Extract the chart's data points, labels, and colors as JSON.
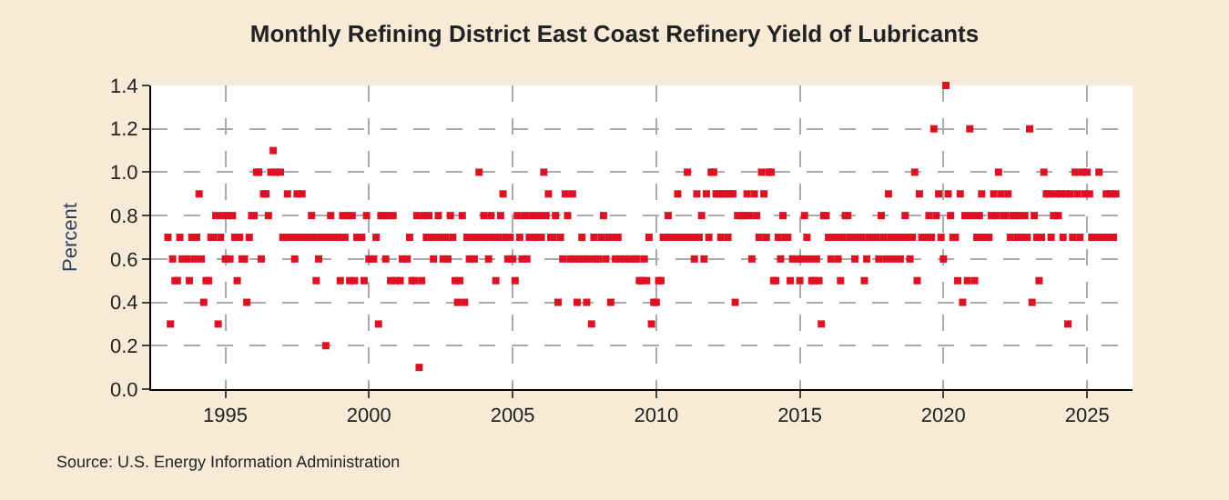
{
  "chart_data": {
    "type": "scatter",
    "title": "Monthly Refining District East Coast Refinery Yield of Lubricants",
    "ylabel": "Percent",
    "annotations": [
      "Source: U.S. Energy Information Administration"
    ],
    "marker": "square",
    "grid": true,
    "xlim": [
      "1992-06",
      "2026-08"
    ],
    "xticks": [
      {
        "value": "1995-01",
        "label": "1995"
      },
      {
        "value": "2000-01",
        "label": "2000"
      },
      {
        "value": "2005-01",
        "label": "2005"
      },
      {
        "value": "2010-01",
        "label": "2010"
      },
      {
        "value": "2015-01",
        "label": "2015"
      },
      {
        "value": "2020-01",
        "label": "2020"
      },
      {
        "value": "2025-01",
        "label": "2025"
      }
    ],
    "ylim": [
      0,
      1.4
    ],
    "yticks": [
      {
        "value": 0,
        "label": "0.0"
      },
      {
        "value": 0.2,
        "label": "0.2"
      },
      {
        "value": 0.4,
        "label": "0.4"
      },
      {
        "value": 0.6,
        "label": "0.6"
      },
      {
        "value": 0.8,
        "label": "0.8"
      },
      {
        "value": 1.0,
        "label": "1.0"
      },
      {
        "value": 1.2,
        "label": "1.2"
      },
      {
        "value": 1.4,
        "label": "1.4"
      }
    ],
    "x": [
      "1993-01",
      "1993-02",
      "1993-03",
      "1993-04",
      "1993-05",
      "1993-06",
      "1993-07",
      "1993-08",
      "1993-09",
      "1993-10",
      "1993-11",
      "1993-12",
      "1994-01",
      "1994-02",
      "1994-03",
      "1994-04",
      "1994-05",
      "1994-06",
      "1994-07",
      "1994-08",
      "1994-09",
      "1994-10",
      "1994-11",
      "1994-12",
      "1995-01",
      "1995-02",
      "1995-03",
      "1995-04",
      "1995-05",
      "1995-06",
      "1995-07",
      "1995-08",
      "1995-09",
      "1995-10",
      "1995-11",
      "1995-12",
      "1996-01",
      "1996-02",
      "1996-03",
      "1996-04",
      "1996-05",
      "1996-06",
      "1996-07",
      "1996-08",
      "1996-09",
      "1996-10",
      "1996-11",
      "1996-12",
      "1997-01",
      "1997-02",
      "1997-03",
      "1997-04",
      "1997-05",
      "1997-06",
      "1997-07",
      "1997-08",
      "1997-09",
      "1997-10",
      "1997-11",
      "1997-12",
      "1998-01",
      "1998-02",
      "1998-03",
      "1998-04",
      "1998-05",
      "1998-06",
      "1998-07",
      "1998-08",
      "1998-09",
      "1998-10",
      "1998-11",
      "1998-12",
      "1999-01",
      "1999-02",
      "1999-03",
      "1999-04",
      "1999-05",
      "1999-06",
      "1999-07",
      "1999-08",
      "1999-09",
      "1999-10",
      "1999-11",
      "1999-12",
      "2000-01",
      "2000-02",
      "2000-03",
      "2000-04",
      "2000-05",
      "2000-06",
      "2000-07",
      "2000-08",
      "2000-09",
      "2000-10",
      "2000-11",
      "2000-12",
      "2001-01",
      "2001-02",
      "2001-03",
      "2001-04",
      "2001-05",
      "2001-06",
      "2001-07",
      "2001-08",
      "2001-09",
      "2001-10",
      "2001-11",
      "2001-12",
      "2002-01",
      "2002-02",
      "2002-03",
      "2002-04",
      "2002-05",
      "2002-06",
      "2002-07",
      "2002-08",
      "2002-09",
      "2002-10",
      "2002-11",
      "2002-12",
      "2003-01",
      "2003-02",
      "2003-03",
      "2003-04",
      "2003-05",
      "2003-06",
      "2003-07",
      "2003-08",
      "2003-09",
      "2003-10",
      "2003-11",
      "2003-12",
      "2004-01",
      "2004-02",
      "2004-03",
      "2004-04",
      "2004-05",
      "2004-06",
      "2004-07",
      "2004-08",
      "2004-09",
      "2004-10",
      "2004-11",
      "2004-12",
      "2005-01",
      "2005-02",
      "2005-03",
      "2005-04",
      "2005-05",
      "2005-06",
      "2005-07",
      "2005-08",
      "2005-09",
      "2005-10",
      "2005-11",
      "2005-12",
      "2006-01",
      "2006-02",
      "2006-03",
      "2006-04",
      "2006-05",
      "2006-06",
      "2006-07",
      "2006-08",
      "2006-09",
      "2006-10",
      "2006-11",
      "2006-12",
      "2007-01",
      "2007-02",
      "2007-03",
      "2007-04",
      "2007-05",
      "2007-06",
      "2007-07",
      "2007-08",
      "2007-09",
      "2007-10",
      "2007-11",
      "2007-12",
      "2008-01",
      "2008-02",
      "2008-03",
      "2008-04",
      "2008-05",
      "2008-06",
      "2008-07",
      "2008-08",
      "2008-09",
      "2008-10",
      "2008-11",
      "2008-12",
      "2009-01",
      "2009-02",
      "2009-03",
      "2009-04",
      "2009-05",
      "2009-06",
      "2009-07",
      "2009-08",
      "2009-09",
      "2009-10",
      "2009-11",
      "2009-12",
      "2010-01",
      "2010-02",
      "2010-03",
      "2010-04",
      "2010-05",
      "2010-06",
      "2010-07",
      "2010-08",
      "2010-09",
      "2010-10",
      "2010-11",
      "2010-12",
      "2011-01",
      "2011-02",
      "2011-03",
      "2011-04",
      "2011-05",
      "2011-06",
      "2011-07",
      "2011-08",
      "2011-09",
      "2011-10",
      "2011-11",
      "2011-12",
      "2012-01",
      "2012-02",
      "2012-03",
      "2012-04",
      "2012-05",
      "2012-06",
      "2012-07",
      "2012-08",
      "2012-09",
      "2012-10",
      "2012-11",
      "2012-12",
      "2013-01",
      "2013-02",
      "2013-03",
      "2013-04",
      "2013-05",
      "2013-06",
      "2013-07",
      "2013-08",
      "2013-09",
      "2013-10",
      "2013-11",
      "2013-12",
      "2014-01",
      "2014-02",
      "2014-03",
      "2014-04",
      "2014-05",
      "2014-06",
      "2014-07",
      "2014-08",
      "2014-09",
      "2014-10",
      "2014-11",
      "2014-12",
      "2015-01",
      "2015-02",
      "2015-03",
      "2015-04",
      "2015-05",
      "2015-06",
      "2015-07",
      "2015-08",
      "2015-09",
      "2015-10",
      "2015-11",
      "2015-12",
      "2016-01",
      "2016-02",
      "2016-03",
      "2016-04",
      "2016-05",
      "2016-06",
      "2016-07",
      "2016-08",
      "2016-09",
      "2016-10",
      "2016-11",
      "2016-12",
      "2017-01",
      "2017-02",
      "2017-03",
      "2017-04",
      "2017-05",
      "2017-06",
      "2017-07",
      "2017-08",
      "2017-09",
      "2017-10",
      "2017-11",
      "2017-12",
      "2018-01",
      "2018-02",
      "2018-03",
      "2018-04",
      "2018-05",
      "2018-06",
      "2018-07",
      "2018-08",
      "2018-09",
      "2018-10",
      "2018-11",
      "2018-12",
      "2019-01",
      "2019-02",
      "2019-03",
      "2019-04",
      "2019-05",
      "2019-06",
      "2019-07",
      "2019-08",
      "2019-09",
      "2019-10",
      "2019-11",
      "2019-12",
      "2020-01",
      "2020-02",
      "2020-03",
      "2020-04",
      "2020-05",
      "2020-06",
      "2020-07",
      "2020-08",
      "2020-09",
      "2020-10",
      "2020-11",
      "2020-12",
      "2021-01",
      "2021-02",
      "2021-03",
      "2021-04",
      "2021-05",
      "2021-06",
      "2021-07",
      "2021-08",
      "2021-09",
      "2021-10",
      "2021-11",
      "2021-12",
      "2022-01",
      "2022-02",
      "2022-03",
      "2022-04",
      "2022-05",
      "2022-06",
      "2022-07",
      "2022-08",
      "2022-09",
      "2022-10",
      "2022-11",
      "2022-12",
      "2023-01",
      "2023-02",
      "2023-03",
      "2023-04",
      "2023-05",
      "2023-06",
      "2023-07",
      "2023-08",
      "2023-09",
      "2023-10",
      "2023-11",
      "2023-12",
      "2024-01",
      "2024-02",
      "2024-03",
      "2024-04",
      "2024-05",
      "2024-06",
      "2024-07",
      "2024-08",
      "2024-09",
      "2024-10",
      "2024-11",
      "2024-12",
      "2025-01",
      "2025-02",
      "2025-03",
      "2025-04",
      "2025-05",
      "2025-06",
      "2025-07",
      "2025-08",
      "2025-09",
      "2025-10",
      "2025-11",
      "2025-12",
      "2026-01"
    ],
    "series": [
      {
        "color": "#dd1122",
        "values": [
          0.7,
          0.3,
          0.6,
          0.5,
          0.5,
          0.7,
          0.6,
          null,
          0.6,
          0.5,
          0.7,
          0.6,
          0.7,
          0.9,
          0.6,
          0.4,
          0.5,
          0.5,
          0.7,
          0.7,
          0.8,
          0.3,
          0.7,
          0.8,
          0.6,
          0.8,
          0.6,
          0.8,
          0.7,
          0.5,
          0.7,
          0.6,
          0.6,
          0.4,
          0.7,
          0.8,
          0.8,
          1.0,
          1.0,
          0.6,
          0.9,
          0.9,
          0.8,
          1.0,
          1.1,
          1.0,
          null,
          1.0,
          0.7,
          0.7,
          0.9,
          0.7,
          0.7,
          0.6,
          0.9,
          0.7,
          0.9,
          0.7,
          null,
          0.7,
          0.8,
          0.7,
          0.5,
          0.6,
          0.7,
          0.7,
          0.2,
          0.7,
          0.8,
          0.7,
          null,
          0.7,
          0.5,
          0.8,
          0.7,
          0.8,
          0.5,
          0.8,
          0.5,
          0.7,
          null,
          0.7,
          0.5,
          0.8,
          0.6,
          null,
          0.6,
          0.7,
          0.3,
          0.8,
          0.8,
          0.6,
          0.8,
          0.5,
          0.8,
          0.5,
          null,
          0.5,
          0.6,
          null,
          0.6,
          0.7,
          0.5,
          0.5,
          0.8,
          0.1,
          0.5,
          0.8,
          0.7,
          0.8,
          0.7,
          0.6,
          0.7,
          0.8,
          0.7,
          0.6,
          0.7,
          0.6,
          0.8,
          0.7,
          0.5,
          0.4,
          0.5,
          0.8,
          0.4,
          0.7,
          0.6,
          0.7,
          0.6,
          0.7,
          1.0,
          0.7,
          0.8,
          0.7,
          0.6,
          0.8,
          0.7,
          0.5,
          0.7,
          0.8,
          0.9,
          0.7,
          0.6,
          0.7,
          0.6,
          0.5,
          0.8,
          0.7,
          0.6,
          0.8,
          0.6,
          0.7,
          0.8,
          0.7,
          0.7,
          0.8,
          0.7,
          1.0,
          0.8,
          0.9,
          0.7,
          0.7,
          0.8,
          0.4,
          0.7,
          0.6,
          0.9,
          0.8,
          0.6,
          0.9,
          0.6,
          0.4,
          0.6,
          0.7,
          0.6,
          0.4,
          0.6,
          0.3,
          0.7,
          0.6,
          0.6,
          0.7,
          0.8,
          0.6,
          0.7,
          0.4,
          0.7,
          0.6,
          0.7,
          0.6,
          null,
          0.6,
          null,
          0.6,
          null,
          0.6,
          0.6,
          0.5,
          0.5,
          0.6,
          0.5,
          0.7,
          0.3,
          0.4,
          0.4,
          0.5,
          0.5,
          0.7,
          0.7,
          0.8,
          0.7,
          null,
          0.7,
          0.9,
          0.7,
          null,
          0.7,
          1.0,
          0.7,
          0.7,
          0.6,
          0.9,
          0.7,
          0.8,
          0.6,
          0.9,
          0.7,
          1.0,
          1.0,
          0.9,
          0.9,
          0.7,
          0.9,
          0.9,
          0.7,
          0.9,
          0.9,
          0.4,
          0.8,
          null,
          0.8,
          0.8,
          0.9,
          0.8,
          0.6,
          0.9,
          0.8,
          0.7,
          1.0,
          0.9,
          0.7,
          1.0,
          1.0,
          0.5,
          0.5,
          0.7,
          0.6,
          0.8,
          0.7,
          0.7,
          0.5,
          0.6,
          null,
          0.6,
          0.5,
          0.6,
          0.8,
          0.7,
          0.6,
          0.5,
          0.5,
          0.6,
          0.5,
          0.3,
          0.8,
          0.8,
          0.7,
          0.6,
          null,
          0.7,
          0.6,
          0.5,
          0.7,
          0.8,
          0.8,
          0.7,
          0.7,
          0.6,
          0.7,
          null,
          0.7,
          0.5,
          0.6,
          0.7,
          null,
          0.7,
          0.7,
          0.6,
          0.8,
          0.7,
          0.6,
          0.9,
          0.7,
          0.6,
          0.7,
          0.7,
          0.6,
          0.7,
          0.8,
          0.7,
          0.6,
          0.7,
          1.0,
          0.5,
          0.9,
          0.7,
          null,
          0.7,
          0.8,
          0.7,
          1.2,
          0.8,
          0.9,
          0.7,
          0.6,
          1.4,
          0.9,
          0.8,
          0.7,
          0.7,
          0.5,
          0.9,
          0.4,
          0.8,
          0.5,
          1.2,
          0.8,
          0.5,
          0.7,
          0.8,
          0.9,
          0.7,
          null,
          0.7,
          0.8,
          0.9,
          0.8,
          1.0,
          0.9,
          0.8,
          0.8,
          0.9,
          0.7,
          0.8,
          0.8,
          0.7,
          0.8,
          0.7,
          0.8,
          0.7,
          1.2,
          0.4,
          0.8,
          0.7,
          0.5,
          0.7,
          1.0,
          0.9,
          0.9,
          0.7,
          0.8,
          0.9,
          0.8,
          0.9,
          0.7,
          0.9,
          0.3,
          0.9,
          0.7,
          1.0,
          0.9,
          0.7,
          1.0,
          0.9,
          1.0,
          0.9,
          0.7,
          null,
          0.7,
          1.0,
          0.7,
          0.7,
          0.9,
          0.7,
          0.9,
          0.7,
          0.9
        ]
      }
    ]
  }
}
